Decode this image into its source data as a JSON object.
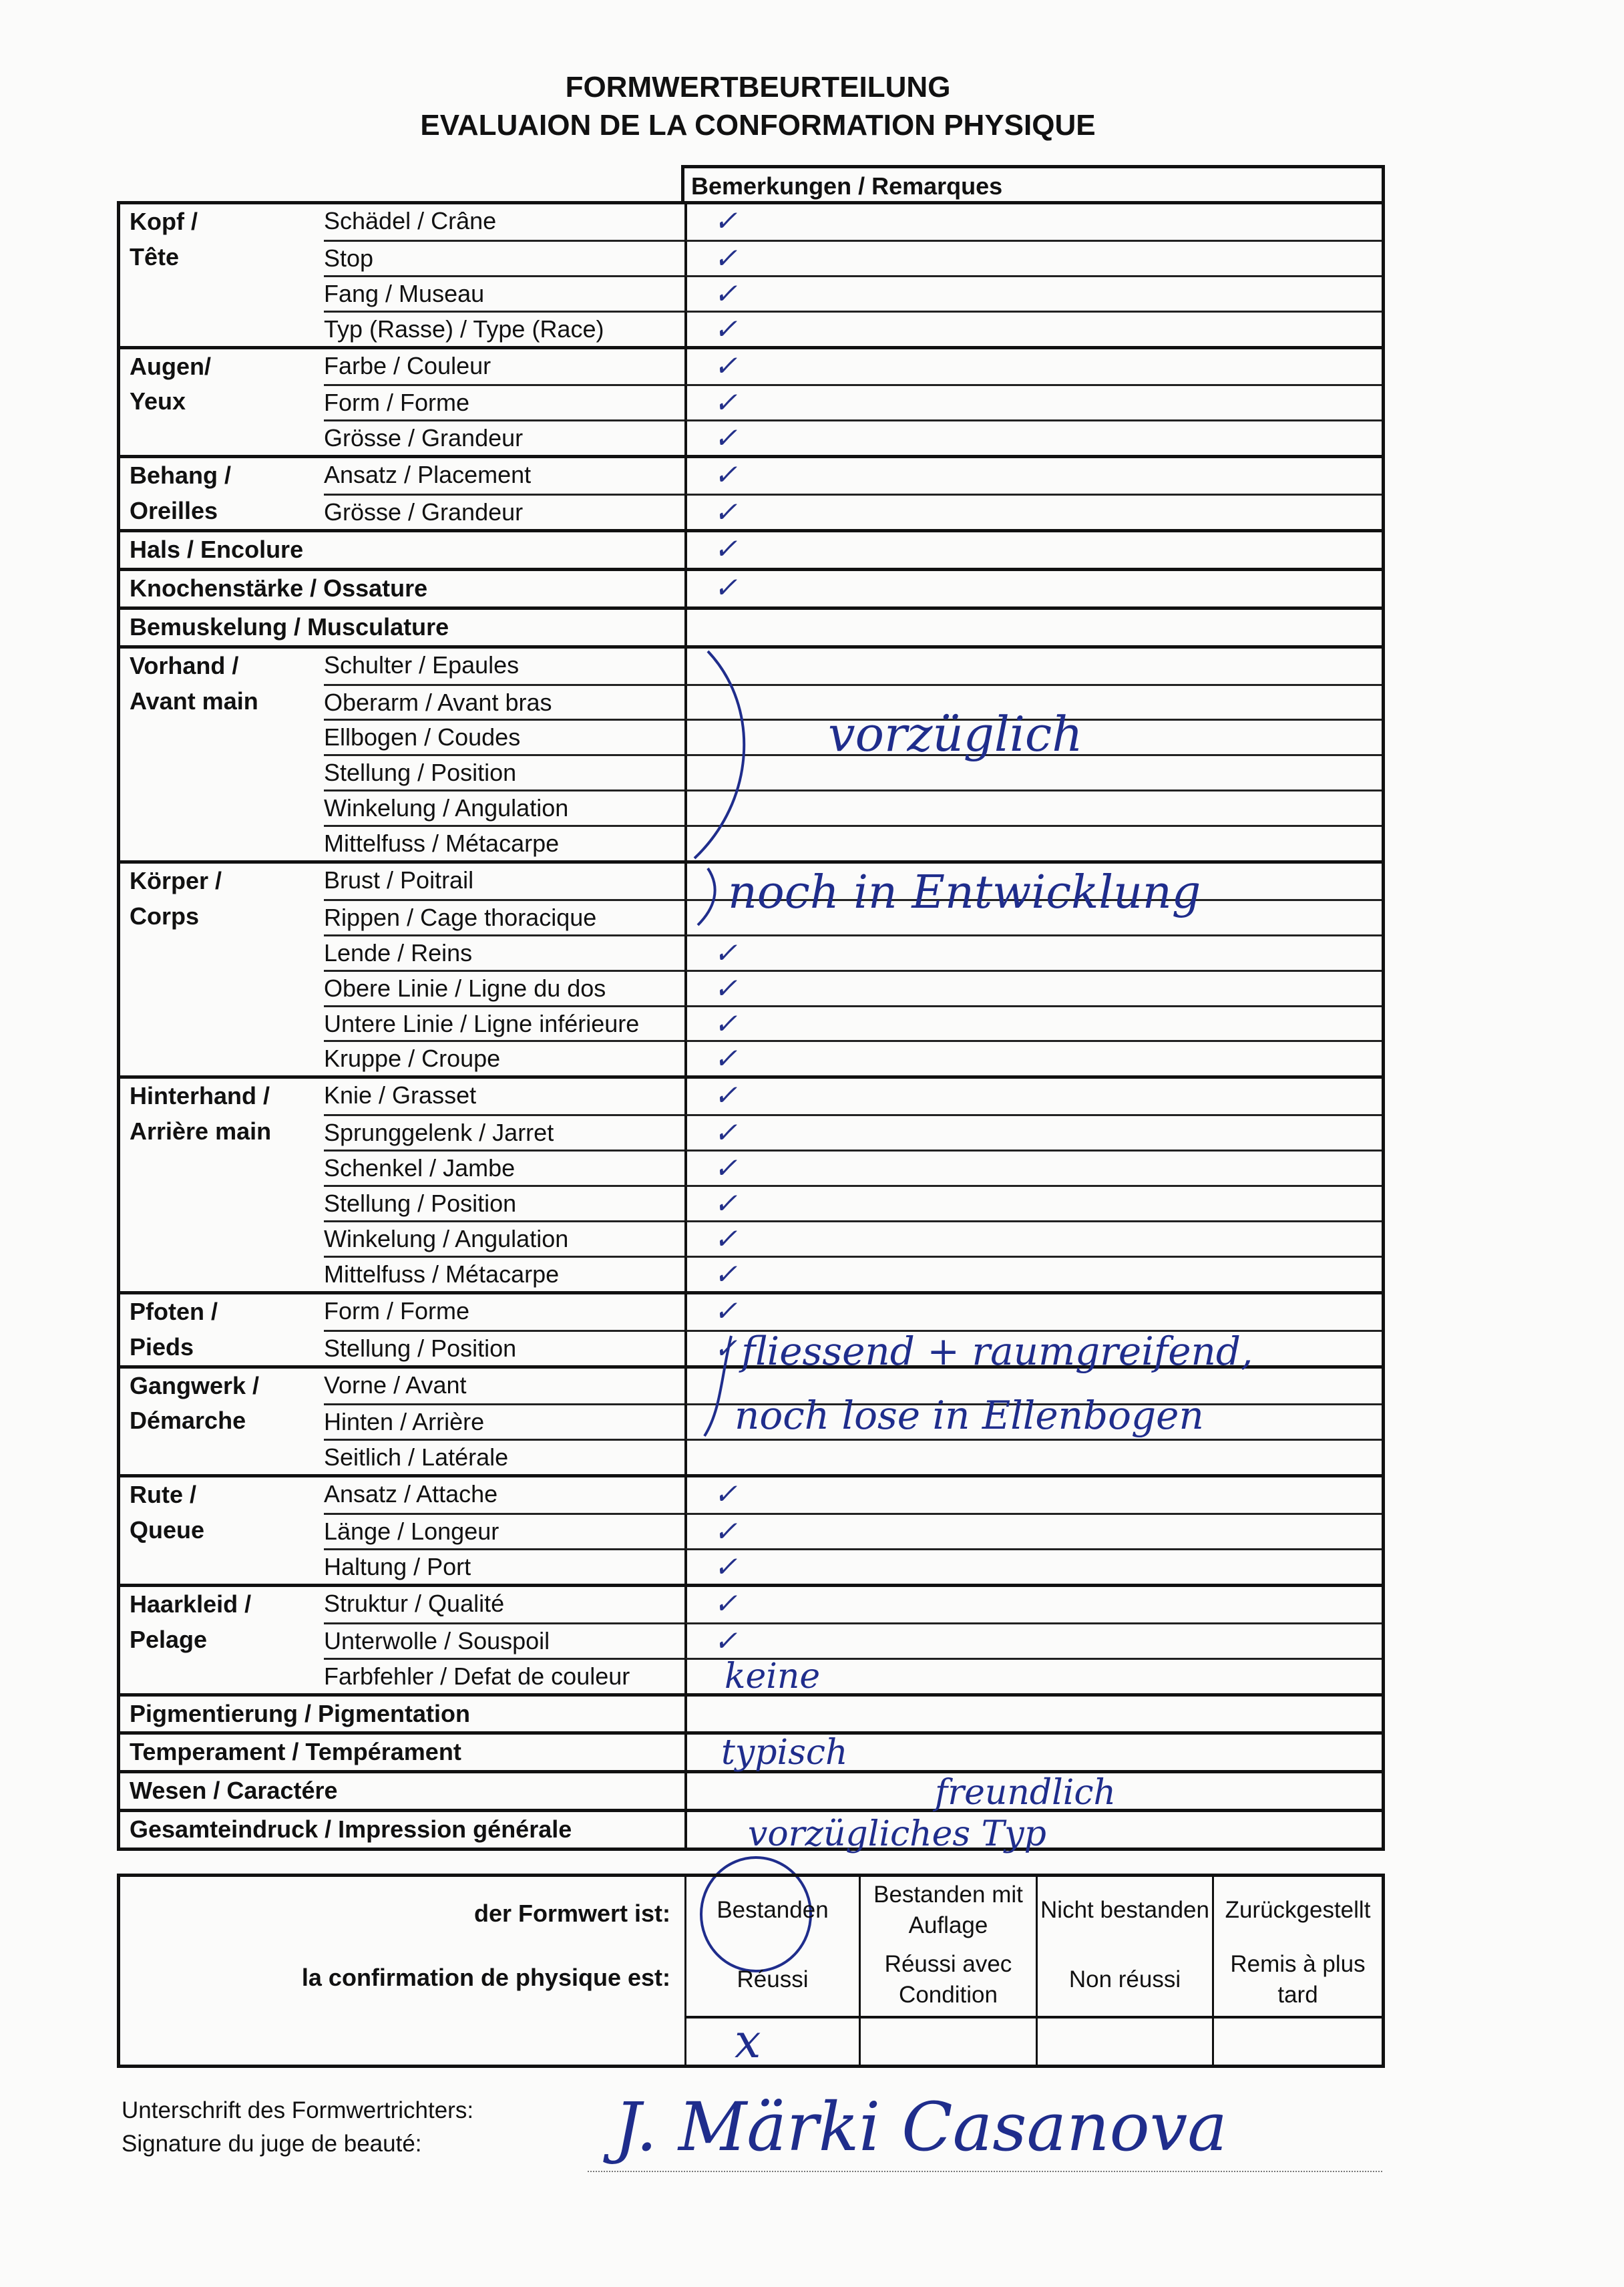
{
  "title_de": "FORMWERTBEURTEILUNG",
  "title_fr": "EVALUAION DE LA CONFORMATION PHYSIQUE",
  "remarks_header": "Bemerkungen / Remarques",
  "groups": [
    {
      "label": [
        "Kopf /",
        "Tête"
      ],
      "items": [
        {
          "label": "Schädel / Crâne",
          "check": true
        },
        {
          "label": "Stop",
          "check": true
        },
        {
          "label": "Fang / Museau",
          "check": true
        },
        {
          "label": "Typ (Rasse) / Type (Race)",
          "check": true
        }
      ]
    },
    {
      "label": [
        "Augen/",
        "Yeux"
      ],
      "items": [
        {
          "label": "Farbe / Couleur",
          "check": true
        },
        {
          "label": "Form / Forme",
          "check": true
        },
        {
          "label": "Grösse / Grandeur",
          "check": true
        }
      ]
    },
    {
      "label": [
        "Behang /",
        "Oreilles"
      ],
      "items": [
        {
          "label": "Ansatz / Placement",
          "check": true
        },
        {
          "label": "Grösse / Grandeur",
          "check": true
        }
      ]
    },
    {
      "label": [
        "Hals / Encolure"
      ],
      "items": [
        {
          "label": "",
          "check": true
        }
      ]
    },
    {
      "label": [
        "Knochenstärke / Ossature"
      ],
      "items": [
        {
          "label": "",
          "check": true
        }
      ]
    },
    {
      "label": [
        "Bemuskelung / Musculature"
      ],
      "items": [
        {
          "label": "",
          "check": false
        }
      ]
    },
    {
      "label": [
        "Vorhand /",
        "Avant main"
      ],
      "items": [
        {
          "label": "Schulter / Epaules",
          "check": false
        },
        {
          "label": "Oberarm / Avant bras",
          "check": false
        },
        {
          "label": "Ellbogen / Coudes",
          "check": false
        },
        {
          "label": "Stellung / Position",
          "check": false
        },
        {
          "label": "Winkelung / Angulation",
          "check": false
        },
        {
          "label": "Mittelfuss / Métacarpe",
          "check": false
        }
      ]
    },
    {
      "label": [
        "Körper /",
        "Corps"
      ],
      "items": [
        {
          "label": "Brust / Poitrail",
          "check": false
        },
        {
          "label": "Rippen / Cage thoracique",
          "check": false
        },
        {
          "label": "Lende / Reins",
          "check": true
        },
        {
          "label": "Obere Linie / Ligne du dos",
          "check": true
        },
        {
          "label": "Untere Linie / Ligne inférieure",
          "check": true
        },
        {
          "label": "Kruppe / Croupe",
          "check": true
        }
      ]
    },
    {
      "label": [
        "Hinterhand /",
        "Arrière main"
      ],
      "items": [
        {
          "label": "Knie / Grasset",
          "check": true
        },
        {
          "label": "Sprunggelenk / Jarret",
          "check": true
        },
        {
          "label": "Schenkel / Jambe",
          "check": true
        },
        {
          "label": "Stellung / Position",
          "check": true
        },
        {
          "label": "Winkelung / Angulation",
          "check": true
        },
        {
          "label": "Mittelfuss / Métacarpe",
          "check": true
        }
      ]
    },
    {
      "label": [
        "Pfoten /",
        "Pieds"
      ],
      "items": [
        {
          "label": "Form / Forme",
          "check": true
        },
        {
          "label": "Stellung / Position",
          "check": true
        }
      ]
    },
    {
      "label": [
        "Gangwerk /",
        "Démarche"
      ],
      "items": [
        {
          "label": "Vorne / Avant",
          "check": false
        },
        {
          "label": "Hinten / Arrière",
          "check": false
        },
        {
          "label": "Seitlich / Latérale",
          "check": false
        }
      ]
    },
    {
      "label": [
        "Rute /",
        "Queue"
      ],
      "items": [
        {
          "label": "Ansatz / Attache",
          "check": true
        },
        {
          "label": "Länge / Longeur",
          "check": true
        },
        {
          "label": "Haltung / Port",
          "check": true
        }
      ]
    },
    {
      "label": [
        "Haarkleid /",
        "Pelage"
      ],
      "items": [
        {
          "label": "Struktur / Qualité",
          "check": true
        },
        {
          "label": "Unterwolle / Souspoil",
          "check": true
        },
        {
          "label": "Farbfehler / Defat de couleur",
          "check": false
        }
      ]
    },
    {
      "label": [
        "Pigmentierung / Pigmentation"
      ],
      "items": [
        {
          "label": "",
          "check": false
        }
      ]
    },
    {
      "label": [
        "Temperament / Tempérament"
      ],
      "items": [
        {
          "label": "",
          "check": false
        }
      ]
    },
    {
      "label": [
        "Wesen / Caractére"
      ],
      "items": [
        {
          "label": "",
          "check": false
        }
      ]
    },
    {
      "label": [
        "Gesamteindruck / Impression générale"
      ],
      "items": [
        {
          "label": "",
          "check": false
        }
      ]
    }
  ],
  "check_mark": "✓",
  "handwriting": {
    "vorhand": "vorzüglich",
    "koerper": "noch in Entwicklung",
    "gangwerk_1": "fliessend + raumgreifend,",
    "gangwerk_2": "noch lose in Ellenbogen",
    "farbfehler": "keine",
    "temperament": "typisch",
    "wesen": "freundlich",
    "gesamt": "vorzügliches Typ",
    "result_mark": "x"
  },
  "result": {
    "label_de": "der Formwert ist:",
    "label_fr": "la confirmation de physique est:",
    "options": [
      {
        "de": "Bestanden",
        "fr": "Réussi",
        "selected": true
      },
      {
        "de": "Bestanden mit Auflage",
        "fr": "Réussi avec Condition",
        "selected": false
      },
      {
        "de": "Nicht bestanden",
        "fr": "Non réussi",
        "selected": false
      },
      {
        "de": "Zurückgestellt",
        "fr": "Remis à plus tard",
        "selected": false
      }
    ]
  },
  "signature": {
    "label_de": "Unterschrift des Formwertrichters:",
    "label_fr": "Signature du juge de beauté:",
    "handwritten": "J. Märki Casanova"
  },
  "ink_color": "#1f2d8c"
}
